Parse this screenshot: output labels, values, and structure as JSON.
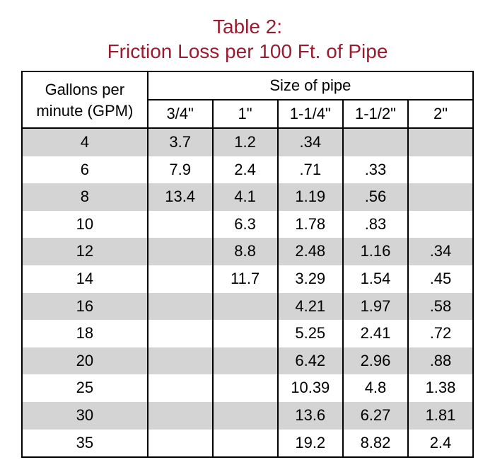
{
  "title_line1": "Table 2:",
  "title_line2": "Friction Loss per 100 Ft. of Pipe",
  "title_color": "#9a1b2f",
  "row_header_line1": "Gallons per",
  "row_header_line2": "minute (GPM)",
  "group_header": "Size of pipe",
  "columns": [
    "3/4\"",
    "1\"",
    "1-1/4\"",
    "1-1/2\"",
    "2\""
  ],
  "shade_color": "#d4d4d4",
  "rows": [
    {
      "gpm": "4",
      "cells": [
        "3.7",
        "1.2",
        ".34",
        "",
        ""
      ]
    },
    {
      "gpm": "6",
      "cells": [
        "7.9",
        "2.4",
        ".71",
        ".33",
        ""
      ]
    },
    {
      "gpm": "8",
      "cells": [
        "13.4",
        "4.1",
        "1.19",
        ".56",
        ""
      ]
    },
    {
      "gpm": "10",
      "cells": [
        "",
        "6.3",
        "1.78",
        ".83",
        ""
      ]
    },
    {
      "gpm": "12",
      "cells": [
        "",
        "8.8",
        "2.48",
        "1.16",
        ".34"
      ]
    },
    {
      "gpm": "14",
      "cells": [
        "",
        "11.7",
        "3.29",
        "1.54",
        ".45"
      ]
    },
    {
      "gpm": "16",
      "cells": [
        "",
        "",
        "4.21",
        "1.97",
        ".58"
      ]
    },
    {
      "gpm": "18",
      "cells": [
        "",
        "",
        "5.25",
        "2.41",
        ".72"
      ]
    },
    {
      "gpm": "20",
      "cells": [
        "",
        "",
        "6.42",
        "2.96",
        ".88"
      ]
    },
    {
      "gpm": "25",
      "cells": [
        "",
        "",
        "10.39",
        "4.8",
        "1.38"
      ]
    },
    {
      "gpm": "30",
      "cells": [
        "",
        "",
        "13.6",
        "6.27",
        "1.81"
      ]
    },
    {
      "gpm": "35",
      "cells": [
        "",
        "",
        "19.2",
        "8.82",
        "2.4"
      ]
    }
  ]
}
